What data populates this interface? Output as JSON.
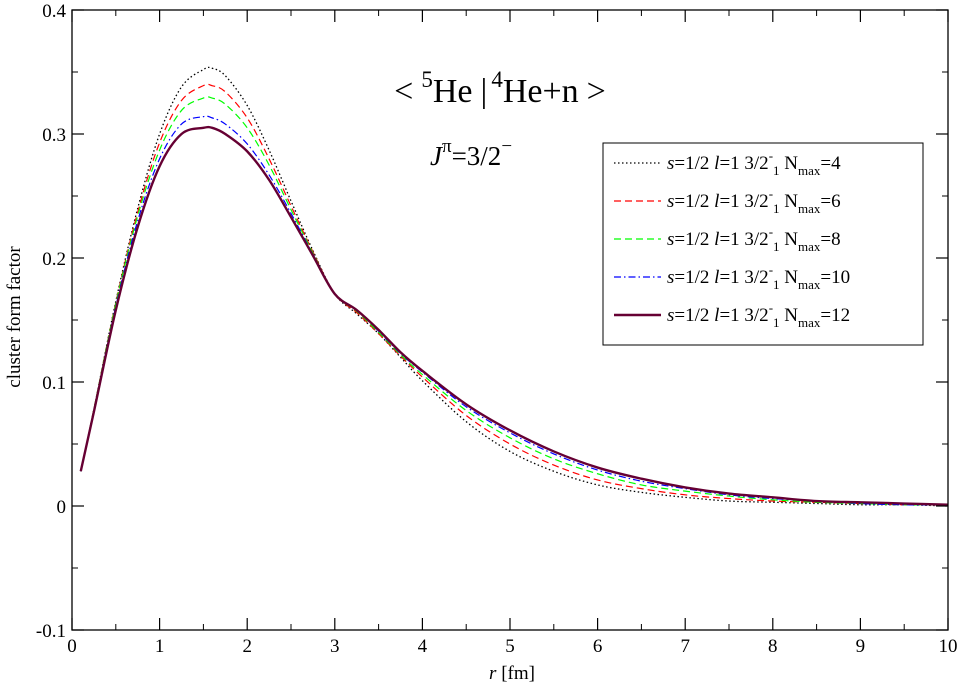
{
  "chart_data": {
    "type": "line",
    "title": {
      "open": "<",
      "sup1": "5",
      "part1": "He",
      "bar": "|",
      "sup2": "4",
      "part2": "He+n",
      "close": ">",
      "color": "#0000ff"
    },
    "subtitle": {
      "j": "J",
      "pi": "π",
      "rest": "=3/2",
      "minus": "−",
      "color": "#660033"
    },
    "xlabel": {
      "r": "r",
      "unit": " [fm]"
    },
    "ylabel": "cluster form factor",
    "xlim": [
      0,
      10
    ],
    "ylim": [
      -0.1,
      0.4
    ],
    "xticks": [
      0,
      1,
      2,
      3,
      4,
      5,
      6,
      7,
      8,
      9,
      10
    ],
    "xtick_labels": [
      "0",
      "1",
      "2",
      "3",
      "4",
      "5",
      "6",
      "7",
      "8",
      "9",
      "10"
    ],
    "yticks": [
      -0.1,
      0,
      0.1,
      0.2,
      0.3,
      0.4
    ],
    "ytick_labels": [
      "-0.1",
      "0",
      "0.1",
      "0.2",
      "0.3",
      "0.4"
    ],
    "grid": false,
    "legend_position": "top-right",
    "series": [
      {
        "legend": {
          "s": "s",
          "seq": "=1/2 ",
          "l": "l",
          "leq": "=1  3/2",
          "sup": "-",
          "sub": "1",
          "n": "  N",
          "nsub": "max",
          "nval": "=4"
        },
        "color": "#000000",
        "style": "dotted",
        "x": [
          0.1,
          0.25,
          0.5,
          0.75,
          1.0,
          1.25,
          1.5,
          1.6,
          1.75,
          2.0,
          2.25,
          2.5,
          2.75,
          3.0,
          3.25,
          3.5,
          3.75,
          4.0,
          4.5,
          5.0,
          5.5,
          6.0,
          6.5,
          7.0,
          7.5,
          8.0,
          8.5,
          9.0,
          9.5,
          10.0
        ],
        "y": [
          0.028,
          0.078,
          0.165,
          0.24,
          0.3,
          0.338,
          0.352,
          0.353,
          0.347,
          0.323,
          0.287,
          0.246,
          0.206,
          0.171,
          0.155,
          0.139,
          0.12,
          0.101,
          0.068,
          0.044,
          0.028,
          0.017,
          0.011,
          0.007,
          0.004,
          0.003,
          0.002,
          0.001,
          0.001,
          0.0
        ]
      },
      {
        "legend": {
          "s": "s",
          "seq": "=1/2 ",
          "l": "l",
          "leq": "=1  3/2",
          "sup": "-",
          "sub": "1",
          "n": "  N",
          "nsub": "max",
          "nval": "=6"
        },
        "color": "#ff0000",
        "style": "dashed",
        "x": [
          0.1,
          0.25,
          0.5,
          0.75,
          1.0,
          1.25,
          1.5,
          1.6,
          1.75,
          2.0,
          2.25,
          2.5,
          2.75,
          3.0,
          3.25,
          3.5,
          3.75,
          4.0,
          4.5,
          5.0,
          5.5,
          6.0,
          6.5,
          7.0,
          7.5,
          8.0,
          8.5,
          9.0,
          9.5,
          10.0
        ],
        "y": [
          0.028,
          0.078,
          0.164,
          0.237,
          0.293,
          0.327,
          0.339,
          0.339,
          0.334,
          0.313,
          0.28,
          0.242,
          0.205,
          0.171,
          0.156,
          0.139,
          0.121,
          0.104,
          0.073,
          0.05,
          0.033,
          0.021,
          0.014,
          0.009,
          0.006,
          0.004,
          0.003,
          0.002,
          0.001,
          0.001
        ]
      },
      {
        "legend": {
          "s": "s",
          "seq": "=1/2 ",
          "l": "l",
          "leq": "=1  3/2",
          "sup": "-",
          "sub": "1",
          "n": "  N",
          "nsub": "max",
          "nval": "=8"
        },
        "color": "#00ff00",
        "style": "dashed",
        "x": [
          0.1,
          0.25,
          0.5,
          0.75,
          1.0,
          1.25,
          1.5,
          1.6,
          1.75,
          2.0,
          2.25,
          2.5,
          2.75,
          3.0,
          3.25,
          3.5,
          3.75,
          4.0,
          4.5,
          5.0,
          5.5,
          6.0,
          6.5,
          7.0,
          7.5,
          8.0,
          8.5,
          9.0,
          9.5,
          10.0
        ],
        "y": [
          0.028,
          0.078,
          0.163,
          0.234,
          0.287,
          0.319,
          0.329,
          0.329,
          0.324,
          0.305,
          0.275,
          0.239,
          0.204,
          0.171,
          0.157,
          0.14,
          0.122,
          0.106,
          0.077,
          0.055,
          0.038,
          0.026,
          0.017,
          0.012,
          0.008,
          0.005,
          0.003,
          0.002,
          0.001,
          0.001
        ]
      },
      {
        "legend": {
          "s": "s",
          "seq": "=1/2 ",
          "l": "l",
          "leq": "=1  3/2",
          "sup": "-",
          "sub": "1",
          "n": "  N",
          "nsub": "max",
          "nval": "=10"
        },
        "color": "#0000ff",
        "style": "dashdot",
        "x": [
          0.1,
          0.25,
          0.5,
          0.75,
          1.0,
          1.25,
          1.5,
          1.6,
          1.75,
          2.0,
          2.25,
          2.5,
          2.75,
          3.0,
          3.25,
          3.5,
          3.75,
          4.0,
          4.5,
          5.0,
          5.5,
          6.0,
          6.5,
          7.0,
          7.5,
          8.0,
          8.5,
          9.0,
          9.5,
          10.0
        ],
        "y": [
          0.028,
          0.077,
          0.161,
          0.23,
          0.28,
          0.308,
          0.314,
          0.313,
          0.308,
          0.292,
          0.267,
          0.236,
          0.203,
          0.171,
          0.158,
          0.141,
          0.123,
          0.108,
          0.08,
          0.059,
          0.042,
          0.029,
          0.02,
          0.014,
          0.009,
          0.006,
          0.004,
          0.002,
          0.001,
          0.001
        ]
      },
      {
        "legend": {
          "s": "s",
          "seq": "=1/2 ",
          "l": "l",
          "leq": "=1  3/2",
          "sup": "-",
          "sub": "1",
          "n": "  N",
          "nsub": "max",
          "nval": "=12"
        },
        "color": "#660033",
        "style": "solid",
        "x": [
          0.1,
          0.25,
          0.5,
          0.75,
          1.0,
          1.25,
          1.5,
          1.6,
          1.75,
          2.0,
          2.25,
          2.5,
          2.75,
          3.0,
          3.25,
          3.5,
          3.75,
          4.0,
          4.5,
          5.0,
          5.5,
          6.0,
          6.5,
          7.0,
          7.5,
          8.0,
          8.5,
          9.0,
          9.5,
          10.0
        ],
        "y": [
          0.028,
          0.076,
          0.158,
          0.225,
          0.274,
          0.3,
          0.305,
          0.305,
          0.3,
          0.286,
          0.263,
          0.233,
          0.202,
          0.171,
          0.158,
          0.142,
          0.124,
          0.109,
          0.082,
          0.061,
          0.044,
          0.031,
          0.022,
          0.015,
          0.01,
          0.007,
          0.004,
          0.003,
          0.002,
          0.001
        ]
      }
    ]
  }
}
